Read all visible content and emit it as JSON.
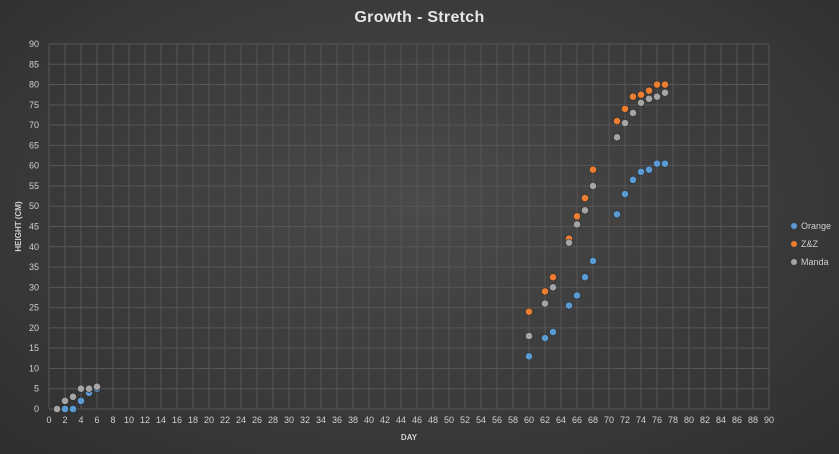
{
  "chart_data": {
    "type": "scatter",
    "title": "Growth - Stretch",
    "xlabel": "DAY",
    "ylabel": "HEIGHT (CM)",
    "xlim": [
      0,
      90
    ],
    "ylim": [
      0,
      90
    ],
    "xticks": [
      0,
      2,
      4,
      6,
      8,
      10,
      12,
      14,
      16,
      18,
      20,
      22,
      24,
      26,
      28,
      30,
      32,
      34,
      36,
      38,
      40,
      42,
      44,
      46,
      48,
      50,
      52,
      54,
      56,
      58,
      60,
      62,
      64,
      66,
      68,
      70,
      72,
      74,
      76,
      78,
      80,
      82,
      84,
      86,
      88,
      90
    ],
    "yticks": [
      0,
      5,
      10,
      15,
      20,
      25,
      30,
      35,
      40,
      45,
      50,
      55,
      60,
      65,
      70,
      75,
      80,
      85,
      90
    ],
    "grid": true,
    "legend_position": "right",
    "series": [
      {
        "name": "Orange",
        "color": "#5b9bd5",
        "points": [
          [
            1,
            0
          ],
          [
            2,
            0
          ],
          [
            3,
            0
          ],
          [
            4,
            2
          ],
          [
            5,
            4
          ],
          [
            6,
            5
          ],
          [
            60,
            13
          ],
          [
            62,
            17.5
          ],
          [
            63,
            19
          ],
          [
            65,
            25.5
          ],
          [
            66,
            28
          ],
          [
            67,
            32.5
          ],
          [
            68,
            36.5
          ],
          [
            71,
            48
          ],
          [
            72,
            53
          ],
          [
            73,
            56.5
          ],
          [
            74,
            58.5
          ],
          [
            75,
            59
          ],
          [
            76,
            60.5
          ],
          [
            77,
            60.5
          ]
        ]
      },
      {
        "name": "Z&Z",
        "color": "#ed7d31",
        "points": [
          [
            1,
            0
          ],
          [
            2,
            2
          ],
          [
            3,
            3
          ],
          [
            4,
            5
          ],
          [
            5,
            5
          ],
          [
            6,
            5.5
          ],
          [
            60,
            24
          ],
          [
            62,
            29
          ],
          [
            63,
            32.5
          ],
          [
            65,
            42
          ],
          [
            66,
            47.5
          ],
          [
            67,
            52
          ],
          [
            68,
            59
          ],
          [
            71,
            71
          ],
          [
            72,
            74
          ],
          [
            73,
            77
          ],
          [
            74,
            77.5
          ],
          [
            75,
            78.5
          ],
          [
            76,
            80
          ],
          [
            77,
            80
          ]
        ]
      },
      {
        "name": "Manda",
        "color": "#a5a5a5",
        "points": [
          [
            1,
            0
          ],
          [
            2,
            2
          ],
          [
            3,
            3
          ],
          [
            4,
            5
          ],
          [
            5,
            5
          ],
          [
            6,
            5.5
          ],
          [
            60,
            18
          ],
          [
            62,
            26
          ],
          [
            63,
            30
          ],
          [
            65,
            41
          ],
          [
            66,
            45.5
          ],
          [
            67,
            49
          ],
          [
            68,
            55
          ],
          [
            71,
            67
          ],
          [
            72,
            70.5
          ],
          [
            73,
            73
          ],
          [
            74,
            75.5
          ],
          [
            75,
            76.5
          ],
          [
            76,
            77
          ],
          [
            77,
            78
          ]
        ]
      }
    ]
  }
}
